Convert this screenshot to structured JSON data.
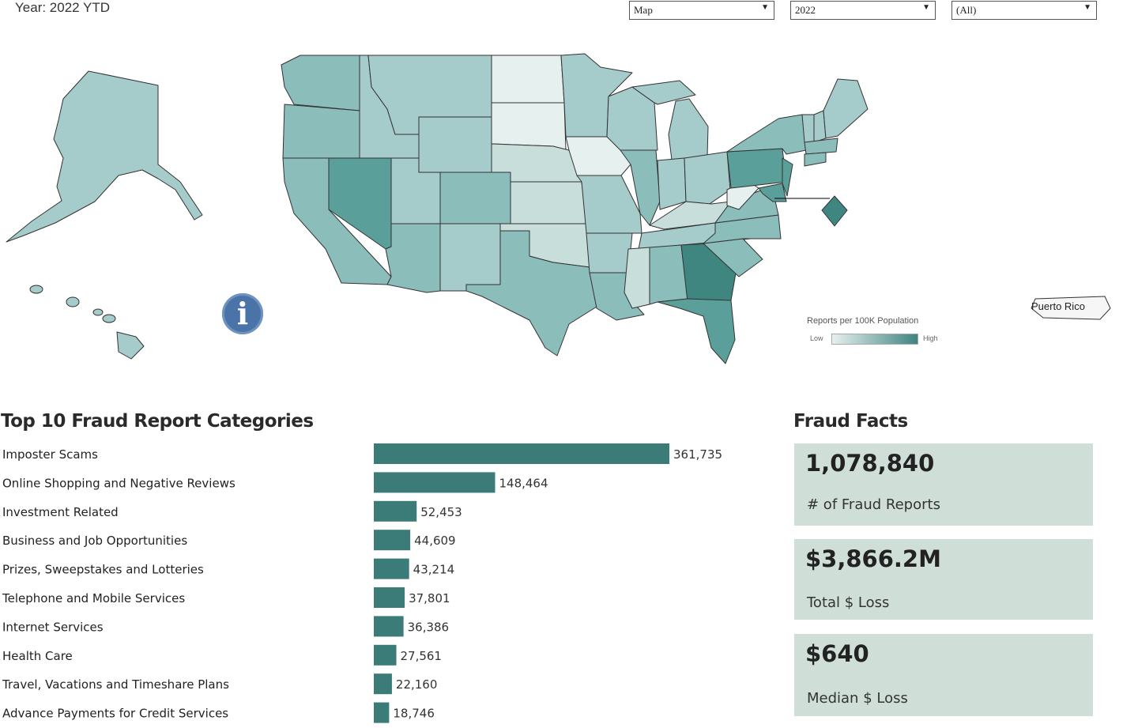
{
  "header": {
    "year_label": "Year: 2022 YTD"
  },
  "filters": {
    "view": "Map",
    "year": "2022",
    "state": "(All)"
  },
  "map": {
    "legend_title": "Reports per 100K Population",
    "legend_low": "Low",
    "legend_high": "High",
    "puerto_rico_label": "Puerto Rico",
    "info_glyph": "i",
    "colors": {
      "low": "#e6f0ee",
      "light": "#c7dedb",
      "mid": "#a5cbca",
      "midhigh": "#8bbdbb",
      "high": "#5a9f9a",
      "highest": "#3f8580",
      "border": "#333333"
    }
  },
  "top10": {
    "title": "Top 10 Fraud Report Categories",
    "bar_color": "#3b7b78"
  },
  "chart_data": {
    "type": "bar",
    "orientation": "horizontal",
    "title": "Top 10 Fraud Report Categories",
    "categories": [
      "Imposter Scams",
      "Online Shopping and Negative Reviews",
      "Investment Related",
      "Business and Job Opportunities",
      "Prizes, Sweepstakes and Lotteries",
      "Telephone and Mobile Services",
      "Internet Services",
      "Health Care",
      "Travel, Vacations and Timeshare Plans",
      "Advance Payments for Credit Services"
    ],
    "values": [
      361735,
      148464,
      52453,
      44609,
      43214,
      37801,
      36386,
      27561,
      22160,
      18746
    ],
    "value_labels": [
      "361,735",
      "148,464",
      "52,453",
      "44,609",
      "43,214",
      "37,801",
      "36,386",
      "27,561",
      "22,160",
      "18,746"
    ],
    "xlim": [
      0,
      361735
    ]
  },
  "facts": {
    "title": "Fraud Facts",
    "items": [
      {
        "value": "1,078,840",
        "label": "# of Fraud Reports"
      },
      {
        "value": "$3,866.2M",
        "label": "Total $ Loss"
      },
      {
        "value": "$640",
        "label": "Median $ Loss"
      }
    ],
    "card_color": "#cfdfd8"
  }
}
